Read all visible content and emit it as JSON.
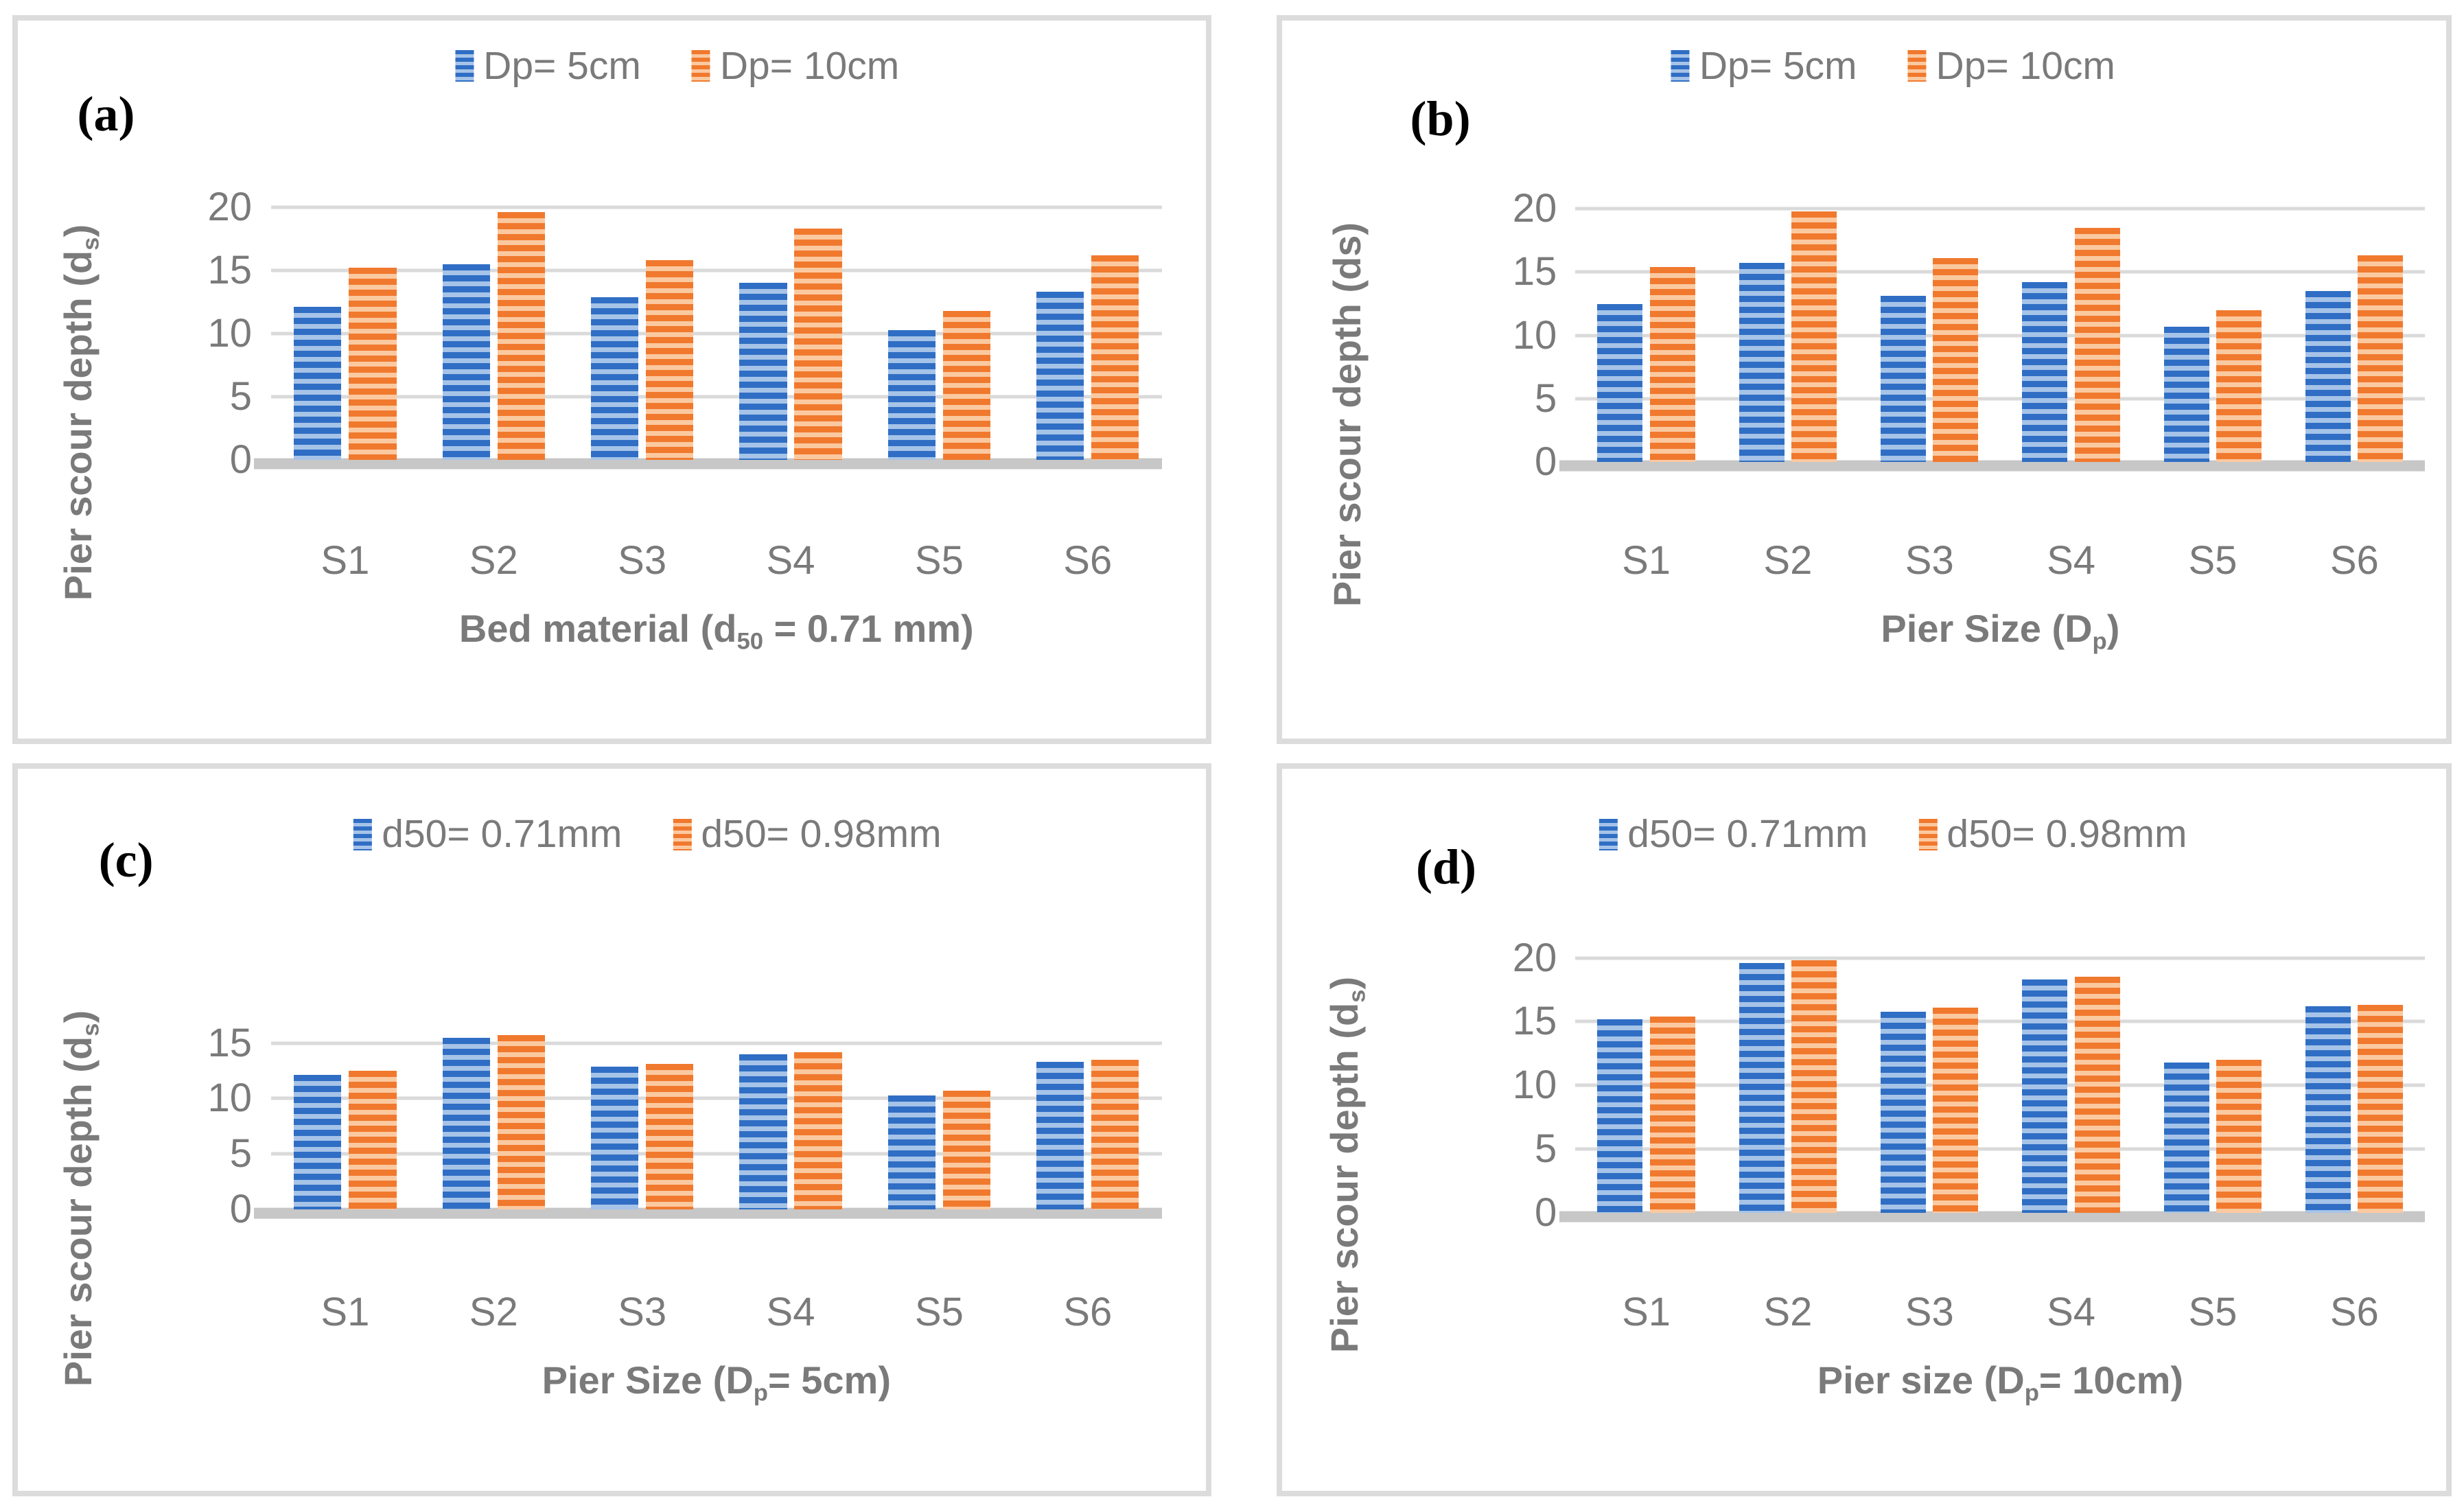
{
  "figure": {
    "background": "#ffffff",
    "panel_border_color": "#dcdcdc",
    "text_color": "#7a7a7a",
    "grid_color": "#dadada",
    "baseline_color": "#c7c7c7",
    "letter_color": "#000000"
  },
  "chart_data": [
    {
      "id": "a",
      "panel_label": "(a)",
      "type": "bar",
      "categories": [
        "S1",
        "S2",
        "S3",
        "S4",
        "S5",
        "S6"
      ],
      "series": [
        {
          "name": "Dp= 5cm",
          "color": "#2F6EC4",
          "stripe_color": "#A6C3E8",
          "values": [
            12.1,
            15.5,
            12.9,
            14.0,
            10.3,
            13.3
          ]
        },
        {
          "name": "Dp= 10cm",
          "color": "#F0792E",
          "stripe_color": "#FBC9A0",
          "values": [
            15.2,
            19.6,
            15.8,
            18.3,
            11.8,
            16.2
          ]
        }
      ],
      "ylabel_parts": [
        {
          "t": "Pier scour depth (d"
        },
        {
          "t": "s",
          "sub": true
        },
        {
          "t": ")"
        }
      ],
      "xlabel_parts": [
        {
          "t": "Bed material (d"
        },
        {
          "t": "50",
          "sub": true
        },
        {
          "t": " = 0.71 mm)"
        }
      ],
      "yticks": [
        0,
        5,
        10,
        15,
        20
      ],
      "ylim": [
        0,
        20
      ],
      "grid": true,
      "legend_position": "top"
    },
    {
      "id": "b",
      "panel_label": "(b)",
      "type": "bar",
      "categories": [
        "S1",
        "S2",
        "S3",
        "S4",
        "S5",
        "S6"
      ],
      "series": [
        {
          "name": "Dp= 5cm",
          "color": "#2F6EC4",
          "stripe_color": "#A6C3E8",
          "values": [
            12.5,
            15.7,
            13.1,
            14.2,
            10.7,
            13.5
          ]
        },
        {
          "name": "Dp= 10cm",
          "color": "#F0792E",
          "stripe_color": "#FBC9A0",
          "values": [
            15.4,
            19.8,
            16.1,
            18.5,
            12.0,
            16.3
          ]
        }
      ],
      "ylabel_parts": [
        {
          "t": "Pier scour depth (ds)"
        }
      ],
      "xlabel_parts": [
        {
          "t": "Pier Size (D"
        },
        {
          "t": "p",
          "sub": true
        },
        {
          "t": ")"
        }
      ],
      "yticks": [
        0,
        5,
        10,
        15,
        20
      ],
      "ylim": [
        0,
        20
      ],
      "grid": true,
      "legend_position": "top"
    },
    {
      "id": "c",
      "panel_label": "(c)",
      "type": "bar",
      "categories": [
        "S1",
        "S2",
        "S3",
        "S4",
        "S5",
        "S6"
      ],
      "series": [
        {
          "name": "d50= 0.71mm",
          "color": "#2F6EC4",
          "stripe_color": "#A6C3E8",
          "values": [
            12.1,
            15.5,
            12.9,
            14.0,
            10.3,
            13.3
          ]
        },
        {
          "name": "d50= 0.98mm",
          "color": "#F0792E",
          "stripe_color": "#FBC9A0",
          "values": [
            12.5,
            15.7,
            13.1,
            14.2,
            10.7,
            13.5
          ]
        }
      ],
      "ylabel_parts": [
        {
          "t": "Pier scour depth (d"
        },
        {
          "t": "s",
          "sub": true
        },
        {
          "t": ")"
        }
      ],
      "xlabel_parts": [
        {
          "t": "Pier Size (D"
        },
        {
          "t": "p",
          "sub": true
        },
        {
          "t": "= 5cm)"
        }
      ],
      "yticks": [
        0,
        5,
        10,
        15
      ],
      "ylim": [
        0,
        16.3
      ],
      "grid": true,
      "legend_position": "top"
    },
    {
      "id": "d",
      "panel_label": "(d)",
      "type": "bar",
      "categories": [
        "S1",
        "S2",
        "S3",
        "S4",
        "S5",
        "S6"
      ],
      "series": [
        {
          "name": "d50= 0.71mm",
          "color": "#2F6EC4",
          "stripe_color": "#A6C3E8",
          "values": [
            15.2,
            19.6,
            15.8,
            18.3,
            11.8,
            16.2
          ]
        },
        {
          "name": "d50= 0.98mm",
          "color": "#F0792E",
          "stripe_color": "#FBC9A0",
          "values": [
            15.4,
            19.8,
            16.1,
            18.5,
            12.0,
            16.3
          ]
        }
      ],
      "ylabel_parts": [
        {
          "t": "Pier scour depth (d"
        },
        {
          "t": "s",
          "sub": true
        },
        {
          "t": ")"
        }
      ],
      "xlabel_parts": [
        {
          "t": "Pier size (D"
        },
        {
          "t": "p",
          "sub": true
        },
        {
          "t": "= 10cm)"
        }
      ],
      "yticks": [
        0,
        5,
        10,
        15,
        20
      ],
      "ylim": [
        0,
        20
      ],
      "grid": true,
      "legend_position": "top"
    }
  ]
}
